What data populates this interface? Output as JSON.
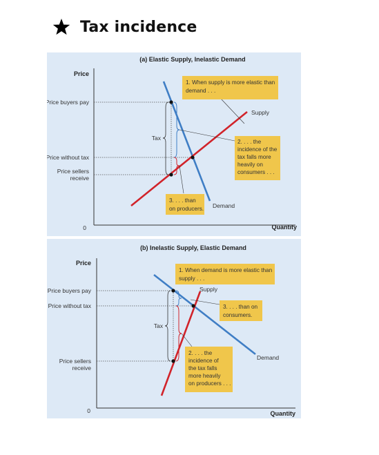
{
  "page": {
    "title": "Tax incidence"
  },
  "colors": {
    "supply": "#d1232a",
    "demand": "#3f7ec5",
    "note_bg": "#f0c64b",
    "panel_bg": "#dde9f6",
    "brace_blue": "#3f7ec5",
    "brace_red": "#d1232a"
  },
  "icons": {
    "heading": "star-icon"
  },
  "panel_a": {
    "title": "(a) Elastic Supply, Inelastic Demand",
    "y_axis_label": "Price",
    "x_axis_label": "Quantity",
    "origin": "0",
    "price_buyers_pay": "Price buyers pay",
    "price_without_tax": "Price without tax",
    "price_sellers_1": "Price sellers",
    "price_sellers_2": "receive",
    "tax_label": "Tax",
    "supply_label": "Supply",
    "demand_label": "Demand",
    "note1_l1": "1. When supply is more elastic than",
    "note1_l2": "demand . . .",
    "note2_l1": "2. . . . the",
    "note2_l2": "incidence of the",
    "note2_l3": "tax falls more",
    "note2_l4": "heavily on",
    "note2_l5": "consumers . . .",
    "note3_l1": "3. . . . than",
    "note3_l2": "on producers."
  },
  "panel_b": {
    "title": "(b) Inelastic Supply, Elastic Demand",
    "y_axis_label": "Price",
    "x_axis_label": "Quantity",
    "origin": "0",
    "price_buyers_pay": "Price buyers pay",
    "price_without_tax": "Price without tax",
    "price_sellers_1": "Price sellers",
    "price_sellers_2": "receive",
    "tax_label": "Tax",
    "supply_label": "Supply",
    "demand_label": "Demand",
    "note1_l1": "1. When demand is more elastic than",
    "note1_l2": "supply . . .",
    "note2_l1": "2. . . . the",
    "note2_l2": "incidence of",
    "note2_l3": "the tax falls",
    "note2_l4": "more heavily",
    "note2_l5": "on producers . . .",
    "note3_l1": "3. . . . than on",
    "note3_l2": "consumers."
  }
}
